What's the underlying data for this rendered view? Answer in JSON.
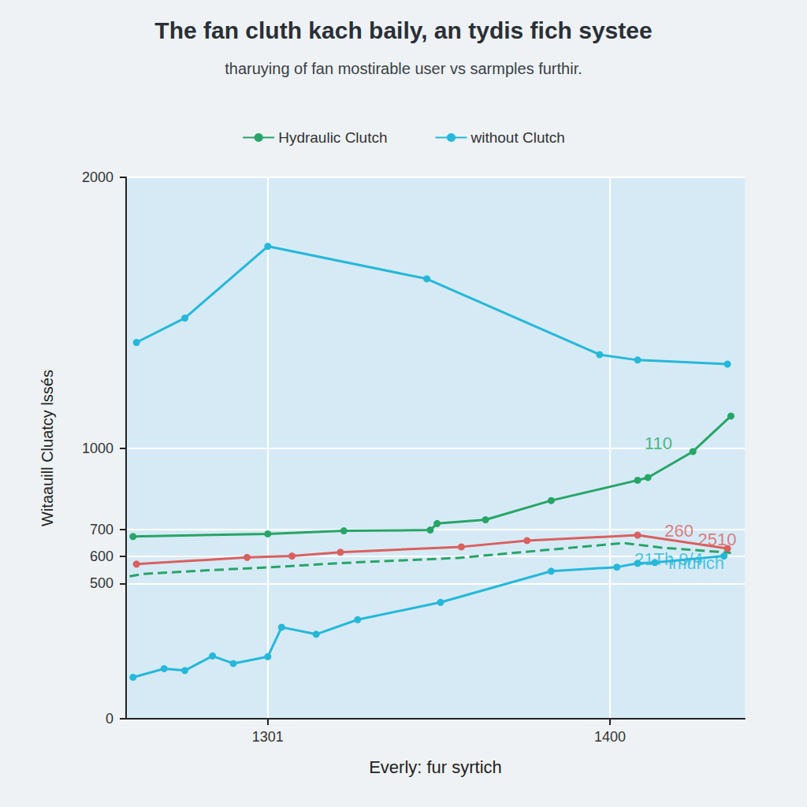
{
  "chart_data": {
    "type": "line",
    "title": "The fan cluth kach baily, an tydis fich systee",
    "subtitle": "tharuying of fan mostirable user vs sarmples furthir.",
    "x_label": "Everly: fur syrtich",
    "y_label": "Witaauill Cluatcy lssés",
    "xlim": [
      1260,
      1439
    ],
    "xticks": [
      1301,
      1400
    ],
    "ylim": [
      0,
      2000
    ],
    "yticks": [
      0,
      500,
      600,
      700,
      1000,
      2000
    ],
    "grid": true,
    "legend": "top",
    "series": [
      {
        "name": "Hydraulic Clutch",
        "color": "#27a567",
        "marker": "circle",
        "line_style": "solid",
        "x": [
          1262,
          1301,
          1323,
          1348,
          1350,
          1364,
          1383,
          1408,
          1411,
          1424,
          1435
        ],
        "values": [
          673,
          683,
          694,
          697,
          721,
          735,
          806,
          881,
          891,
          987,
          1118
        ]
      },
      {
        "name": "without Clutch",
        "color": "#25b8d9",
        "marker": "circle",
        "line_style": "solid",
        "x": [
          1263,
          1277,
          1301,
          1347,
          1397,
          1408,
          1434
        ],
        "values": [
          1390,
          1480,
          1745,
          1625,
          1345,
          1325,
          1310
        ]
      },
      {
        "color": "#d9605f",
        "marker": "circle",
        "line_style": "solid",
        "x": [
          1263,
          1295,
          1308,
          1322,
          1357,
          1376,
          1408,
          1434
        ],
        "values": [
          571,
          596,
          601,
          615,
          635,
          658,
          678,
          629
        ]
      },
      {
        "color": "#27a567",
        "marker": "none",
        "line_style": "dashed",
        "x": [
          1261,
          1265,
          1283,
          1301,
          1322,
          1356,
          1383,
          1404,
          1415,
          1435
        ],
        "values": [
          526,
          535,
          548,
          559,
          575,
          594,
          625,
          649,
          632,
          613
        ]
      },
      {
        "color": "#25b8d9",
        "marker": "circle",
        "line_style": "solid",
        "x": [
          1262,
          1271,
          1277,
          1285,
          1291,
          1301,
          1305,
          1315,
          1327,
          1351,
          1383,
          1402,
          1408,
          1413,
          1433
        ],
        "values": [
          153,
          185,
          178,
          232,
          204,
          229,
          338,
          312,
          366,
          430,
          545,
          560,
          574,
          577,
          601
        ]
      }
    ],
    "annotations": [
      {
        "text": "110",
        "x": 1414,
        "y": 1018,
        "color": "#27a567"
      },
      {
        "text": "260",
        "x": 1420,
        "y": 695,
        "color": "#d9605f"
      },
      {
        "text": "2510",
        "x": 1431,
        "y": 661,
        "color": "#d9605f"
      },
      {
        "text": "21Th 9/4",
        "x": 1417,
        "y": 590,
        "color": "#25b8d9"
      },
      {
        "text": "imurich",
        "x": 1425,
        "y": 574,
        "color": "#25b8d9"
      }
    ]
  }
}
